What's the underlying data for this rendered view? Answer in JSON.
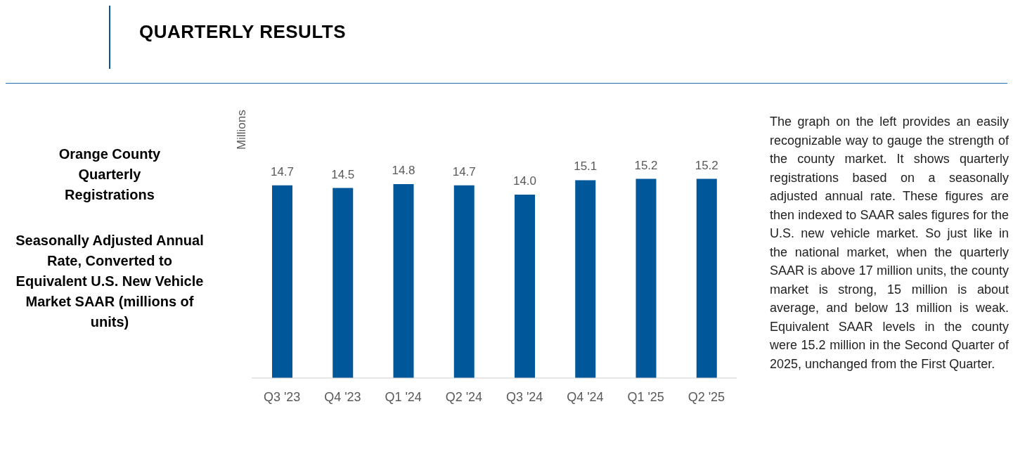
{
  "chart_data": {
    "type": "bar",
    "title": "Orange County Quarterly Registrations",
    "subtitle": "Seasonally Adjusted Annual Rate, Converted to Equivalent U.S. New Vehicle Market SAAR (millions of units)",
    "ylabel": "Millions",
    "categories": [
      "Q3 '23",
      "Q4 '23",
      "Q1 '24",
      "Q2 '24",
      "Q3 '24",
      "Q4 '24",
      "Q1 '25",
      "Q2 '25"
    ],
    "values": [
      14.7,
      14.5,
      14.8,
      14.7,
      14.0,
      15.1,
      15.2,
      15.2
    ],
    "color": "#00579a",
    "value_labels": [
      "14.7",
      "14.5",
      "14.8",
      "14.7",
      "14.0",
      "15.1",
      "15.2",
      "15.2"
    ],
    "annotations": [
      "QUARTERLY RESULTS",
      "The graph on the left provides an easily recognizable way to gauge the strength of the county market. It shows quarterly registrations based on a seasonally adjusted annual rate. These figures are then indexed to SAAR sales figures for the U.S. new vehicle market. So just like in the national market, when the quarterly SAAR is above 17 million units, the county market is strong, 15 million is about average, and below 13 million is weak. Equivalent SAAR levels in the county were 15.2 million in the Second Quarter of 2025, unchanged from the First Quarter."
    ]
  }
}
